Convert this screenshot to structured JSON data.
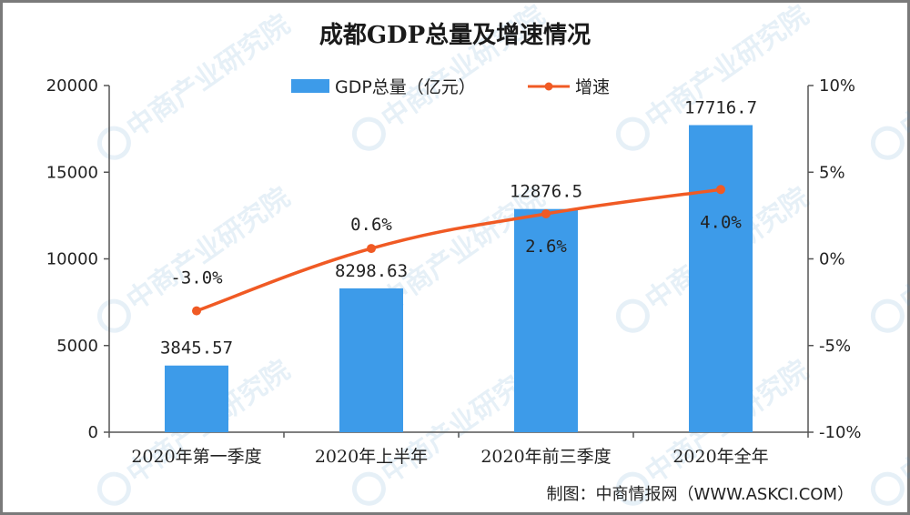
{
  "chart_data": {
    "type": "bar",
    "title": "成都GDP总量及增速情况",
    "categories": [
      "2020年第一季度",
      "2020年上半年",
      "2020年前三季度",
      "2020年全年"
    ],
    "series": [
      {
        "name": "GDP总量（亿元）",
        "type": "bar",
        "axis": "left",
        "values": [
          3845.57,
          8298.63,
          12876.5,
          17716.7
        ],
        "labels": [
          "3845.57",
          "8298.63",
          "12876.5",
          "17716.7"
        ],
        "color": "#3d9be9"
      },
      {
        "name": "增速",
        "type": "line",
        "axis": "right",
        "values": [
          -3.0,
          0.6,
          2.6,
          4.0
        ],
        "labels": [
          "-3.0%",
          "0.6%",
          "2.6%",
          "4.0%"
        ],
        "color": "#f05a24"
      }
    ],
    "y_left": {
      "ylim": [
        0,
        20000
      ],
      "ticks": [
        "0",
        "5000",
        "10000",
        "15000",
        "20000"
      ]
    },
    "y_right": {
      "ylim": [
        -10,
        10
      ],
      "ticks": [
        "-10%",
        "-5%",
        "0%",
        "5%",
        "10%"
      ]
    },
    "grid": false,
    "legend_position": "top"
  },
  "source": "制图：中商情报网（WWW.ASKCI.COM）",
  "watermark": "中商产业研究院"
}
